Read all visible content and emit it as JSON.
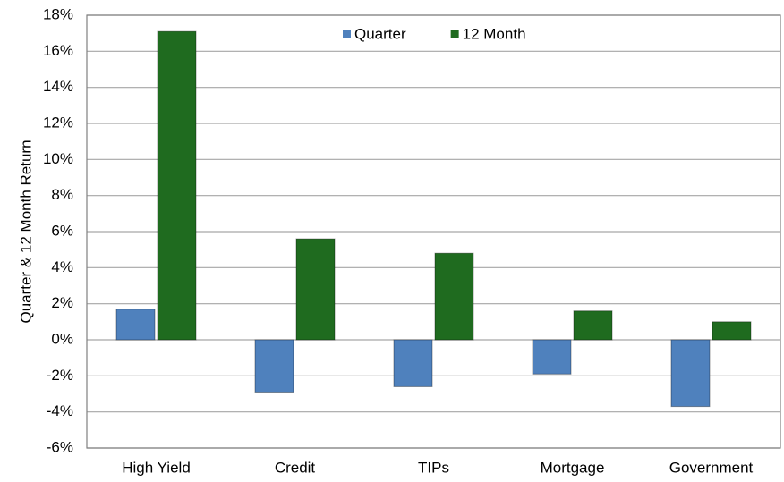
{
  "chart_data": {
    "type": "bar",
    "y_label": "Quarter & 12 Month Return",
    "categories": [
      "High Yield",
      "Credit",
      "TIPs",
      "Mortgage",
      "Government"
    ],
    "series": [
      {
        "name": "Quarter",
        "color": "#4f81bd",
        "values": [
          1.7,
          -2.9,
          -2.6,
          -1.9,
          -3.7
        ]
      },
      {
        "name": "12 Month",
        "color": "#1f6b1f",
        "values": [
          17.1,
          5.6,
          4.8,
          1.6,
          1.0
        ]
      }
    ],
    "ylim": [
      -6,
      18
    ],
    "yticks": [
      {
        "value": -6,
        "label": "-6%"
      },
      {
        "value": -4,
        "label": "-4%"
      },
      {
        "value": -2,
        "label": "-2%"
      },
      {
        "value": 0,
        "label": "0%"
      },
      {
        "value": 2,
        "label": "2%"
      },
      {
        "value": 4,
        "label": "4%"
      },
      {
        "value": 6,
        "label": "6%"
      },
      {
        "value": 8,
        "label": "8%"
      },
      {
        "value": 10,
        "label": "10%"
      },
      {
        "value": 12,
        "label": "12%"
      },
      {
        "value": 14,
        "label": "14%"
      },
      {
        "value": 16,
        "label": "16%"
      },
      {
        "value": 18,
        "label": "18%"
      }
    ],
    "grid": true
  }
}
